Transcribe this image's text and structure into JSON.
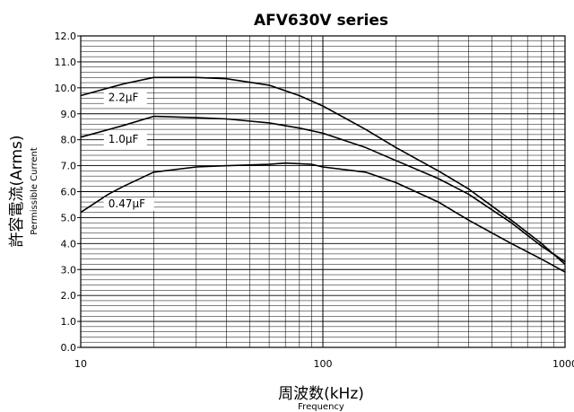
{
  "chart_data": {
    "type": "line",
    "title": "AFV630V series",
    "xlabel": "周波数(kHz)",
    "xlabel_sub": "Frequency",
    "ylabel": "許容電流(Arms)",
    "ylabel_sub": "Permissible Current",
    "x_scale": "log",
    "xlim": [
      10,
      1000
    ],
    "ylim": [
      0,
      12
    ],
    "x_ticks": [
      10,
      100,
      1000
    ],
    "x_tick_labels": [
      "10",
      "100",
      "1000"
    ],
    "y_ticks": [
      0,
      1,
      2,
      3,
      4,
      5,
      6,
      7,
      8,
      9,
      10,
      11,
      12
    ],
    "y_tick_labels": [
      "0.0",
      "1.0",
      "2.0",
      "3.0",
      "4.0",
      "5.0",
      "6.0",
      "7.0",
      "8.0",
      "9.0",
      "10.0",
      "11.0",
      "12.0"
    ],
    "grid": true,
    "series": [
      {
        "name": "2.2μF",
        "label_at": 13,
        "points": [
          [
            10,
            9.7
          ],
          [
            15,
            10.15
          ],
          [
            20,
            10.4
          ],
          [
            30,
            10.4
          ],
          [
            40,
            10.35
          ],
          [
            60,
            10.1
          ],
          [
            80,
            9.7
          ],
          [
            100,
            9.3
          ],
          [
            150,
            8.4
          ],
          [
            200,
            7.7
          ],
          [
            300,
            6.8
          ],
          [
            400,
            6.1
          ],
          [
            600,
            4.9
          ],
          [
            800,
            4.0
          ],
          [
            1000,
            3.2
          ]
        ]
      },
      {
        "name": "1.0μF",
        "label_at": 13,
        "points": [
          [
            10,
            8.1
          ],
          [
            15,
            8.55
          ],
          [
            20,
            8.9
          ],
          [
            30,
            8.85
          ],
          [
            40,
            8.8
          ],
          [
            60,
            8.65
          ],
          [
            80,
            8.45
          ],
          [
            100,
            8.25
          ],
          [
            150,
            7.7
          ],
          [
            200,
            7.2
          ],
          [
            300,
            6.5
          ],
          [
            400,
            5.9
          ],
          [
            600,
            4.8
          ],
          [
            800,
            3.9
          ],
          [
            1000,
            3.3
          ]
        ]
      },
      {
        "name": "0.47μF",
        "label_at": 13,
        "points": [
          [
            10,
            5.2
          ],
          [
            13,
            5.9
          ],
          [
            15,
            6.2
          ],
          [
            20,
            6.75
          ],
          [
            30,
            6.95
          ],
          [
            40,
            7.0
          ],
          [
            60,
            7.05
          ],
          [
            70,
            7.1
          ],
          [
            90,
            7.05
          ],
          [
            100,
            6.95
          ],
          [
            150,
            6.75
          ],
          [
            200,
            6.35
          ],
          [
            300,
            5.6
          ],
          [
            400,
            4.9
          ],
          [
            600,
            4.0
          ],
          [
            800,
            3.4
          ],
          [
            1000,
            2.9
          ]
        ]
      }
    ]
  }
}
